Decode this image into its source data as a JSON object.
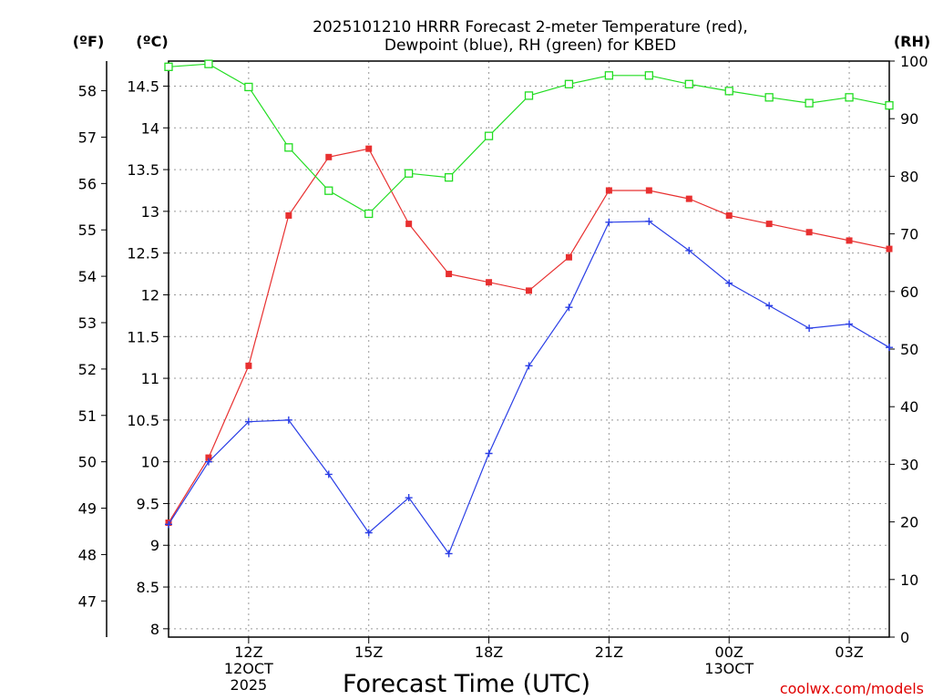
{
  "chart_data": {
    "type": "line",
    "title_lines": [
      "2025101210 HRRR Forecast 2-meter Temperature (red),",
      "Dewpoint (blue), RH (green) for KBED"
    ],
    "units": {
      "fahrenheit": "(ºF)",
      "celsius": "(ºC)",
      "rh": "(RH)"
    },
    "xlabel": "Forecast Time (UTC)",
    "credit": "coolwx.com/models",
    "x_hours": [
      10,
      11,
      12,
      13,
      14,
      15,
      16,
      17,
      18,
      19,
      20,
      21,
      22,
      23,
      24,
      25,
      26,
      27,
      28
    ],
    "x_ticks": [
      {
        "hour": 12,
        "lines": [
          "12Z",
          "12OCT",
          "2025"
        ]
      },
      {
        "hour": 15,
        "lines": [
          "15Z"
        ]
      },
      {
        "hour": 18,
        "lines": [
          "18Z"
        ]
      },
      {
        "hour": 21,
        "lines": [
          "21Z"
        ]
      },
      {
        "hour": 24,
        "lines": [
          "00Z",
          "13OCT"
        ]
      },
      {
        "hour": 27,
        "lines": [
          "03Z"
        ]
      }
    ],
    "xlim": [
      10,
      28
    ],
    "celsius_axis": {
      "ylim": [
        7.9,
        14.8
      ],
      "ticks": [
        "8",
        "8.5",
        "9",
        "9.5",
        "10",
        "10.5",
        "11",
        "11.5",
        "12",
        "12.5",
        "13",
        "13.5",
        "14",
        "14.5"
      ],
      "gridlines": true
    },
    "fahrenheit_axis": {
      "ticks": [
        "47",
        "48",
        "49",
        "50",
        "51",
        "52",
        "53",
        "54",
        "55",
        "56",
        "57",
        "58"
      ]
    },
    "rh_axis": {
      "ylim": [
        0,
        100
      ],
      "ticks": [
        "0",
        "10",
        "20",
        "30",
        "40",
        "50",
        "60",
        "70",
        "80",
        "90",
        "100"
      ]
    },
    "series": [
      {
        "name": "2-meter Temperature",
        "color": "#e83030",
        "axis": "celsius",
        "marker": "filled-square",
        "values": [
          9.27,
          10.05,
          11.15,
          12.95,
          13.65,
          13.75,
          12.85,
          12.25,
          12.15,
          12.05,
          12.45,
          13.25,
          13.25,
          13.15,
          12.95,
          12.85,
          12.75,
          12.65,
          12.55
        ]
      },
      {
        "name": "Dewpoint",
        "color": "#2a3ee6",
        "axis": "celsius",
        "marker": "plus",
        "values": [
          9.25,
          10.0,
          10.48,
          10.5,
          9.85,
          9.15,
          9.57,
          8.9,
          10.1,
          11.15,
          11.85,
          12.87,
          12.88,
          12.53,
          12.14,
          11.87,
          11.6,
          11.65,
          11.37
        ]
      },
      {
        "name": "RH",
        "color": "#22dd22",
        "axis": "rh",
        "marker": "open-square",
        "values": [
          99,
          99.5,
          95.5,
          85,
          77.5,
          73.5,
          80.5,
          79.8,
          87,
          94,
          96,
          97.5,
          97.5,
          96,
          94.8,
          93.7,
          92.7,
          93.7,
          92.3
        ]
      }
    ]
  }
}
